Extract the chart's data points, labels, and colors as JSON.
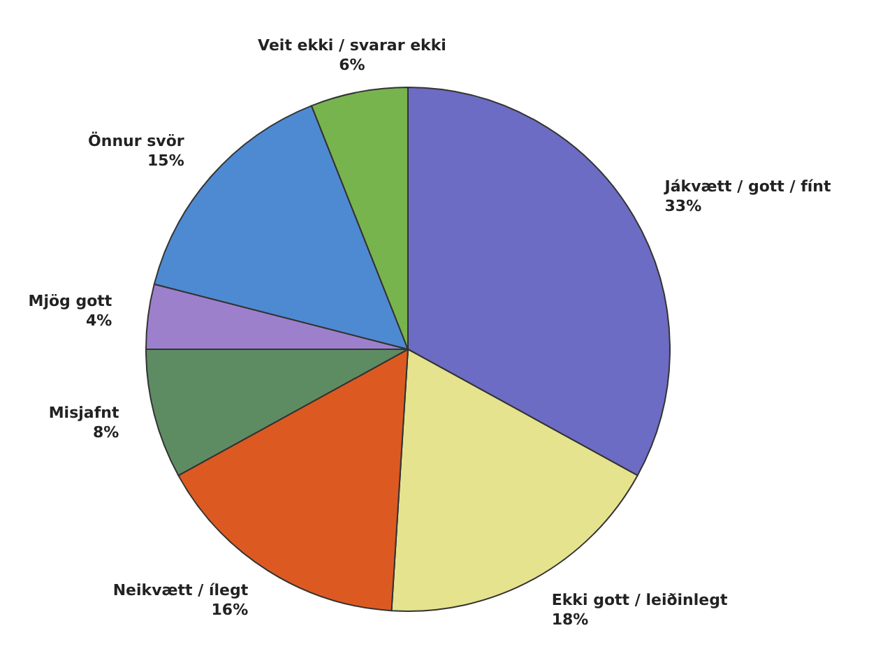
{
  "chart_data": {
    "type": "pie",
    "categories": [
      "Jákvætt / gott / fínt",
      "Ekki gott / leiðinlegt",
      "Neikvætt / ílegt",
      "Misjafnt",
      "Mjög gott",
      "Önnur svör",
      "Veit ekki / svarar ekki"
    ],
    "values": [
      33,
      18,
      16,
      8,
      4,
      15,
      6
    ],
    "value_labels": [
      "33%",
      "18%",
      "16%",
      "8%",
      "4%",
      "15%",
      "6%"
    ],
    "colors": [
      "#6c6cc4",
      "#e6e38e",
      "#dc5a22",
      "#5e8c62",
      "#9c80cc",
      "#4e8ad2",
      "#78b44e"
    ],
    "legend": false
  }
}
